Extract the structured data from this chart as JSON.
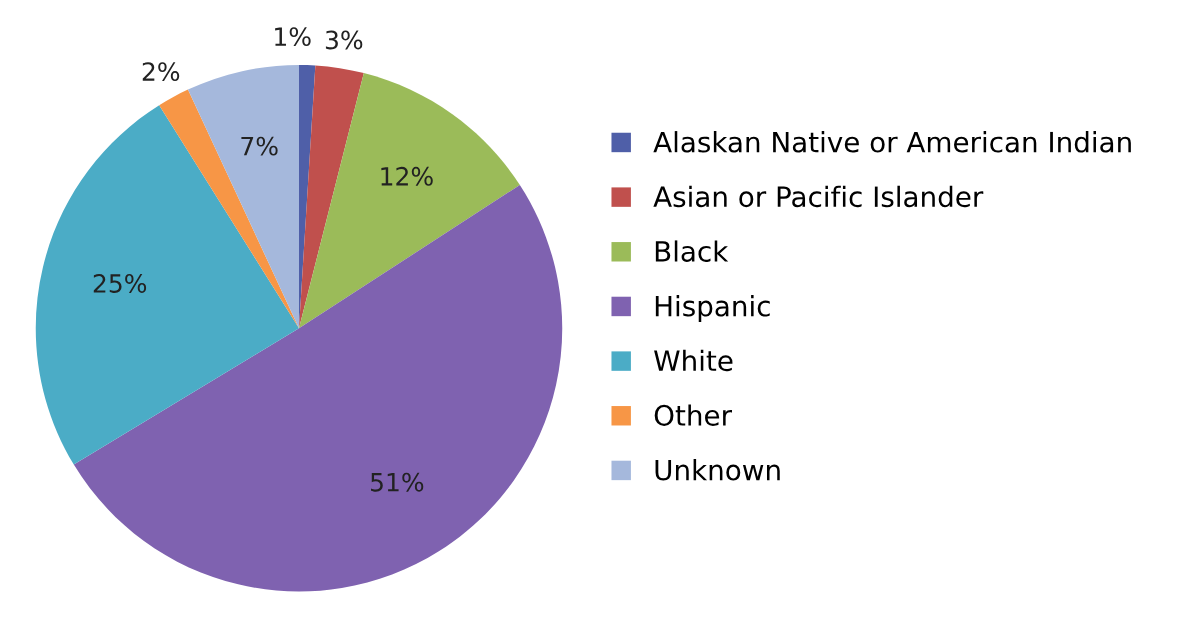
{
  "chart_data": {
    "type": "pie",
    "categories": [
      "Alaskan Native or American Indian",
      "Asian or Pacific Islander",
      "Black",
      "Hispanic",
      "White",
      "Other",
      "Unknown"
    ],
    "values": [
      1,
      3,
      12,
      51,
      25,
      2,
      7
    ],
    "colors": [
      "#4f5fa8",
      "#c0504d",
      "#9bbb59",
      "#7f62b0",
      "#4bacc6",
      "#f79646",
      "#a5b8dc"
    ],
    "value_labels": [
      "1%",
      "3%",
      "12%",
      "51%",
      "25%",
      "2%",
      "7%"
    ],
    "legend": "right"
  }
}
